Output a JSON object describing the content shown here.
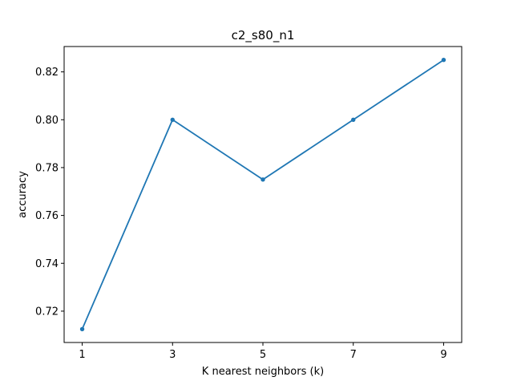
{
  "chart_data": {
    "type": "line",
    "title": "c2_s80_n1",
    "xlabel": "K nearest neighbors (k)",
    "ylabel": "accuracy",
    "x": [
      1,
      3,
      5,
      7,
      9
    ],
    "series": [
      {
        "values": [
          0.7125,
          0.8,
          0.775,
          0.8,
          0.825
        ],
        "color": "#1f77b4",
        "marker": "circle"
      }
    ],
    "xlim": [
      0.6,
      9.4
    ],
    "ylim": [
      0.7069,
      0.8306
    ],
    "xticks": [
      1,
      3,
      5,
      7,
      9
    ],
    "xtick_labels": [
      "1",
      "3",
      "5",
      "7",
      "9"
    ],
    "yticks": [
      0.72,
      0.74,
      0.76,
      0.78,
      0.8,
      0.82
    ],
    "ytick_labels": [
      "0.72",
      "0.74",
      "0.76",
      "0.78",
      "0.80",
      "0.82"
    ],
    "grid": false,
    "legend": "none"
  }
}
